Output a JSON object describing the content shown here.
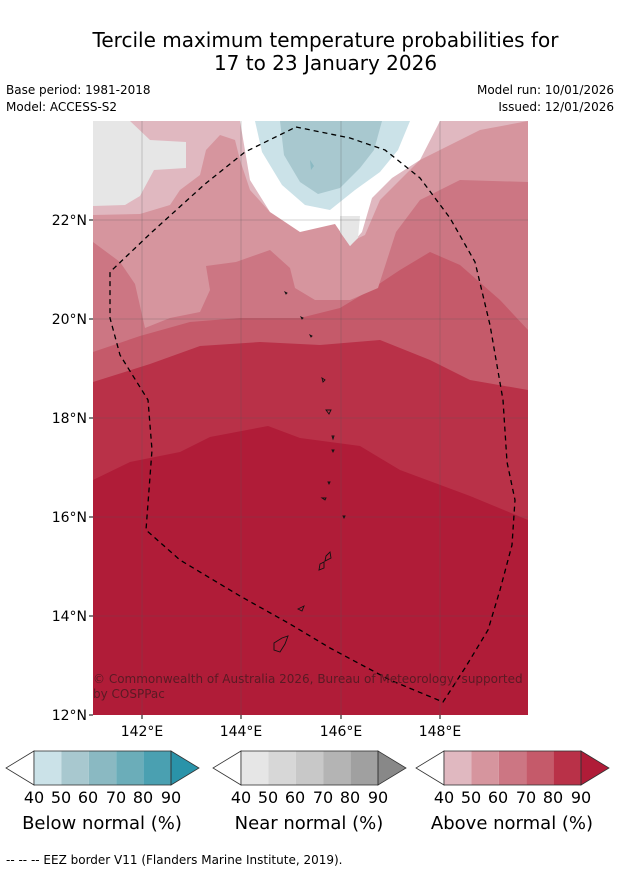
{
  "title_line1": "Tercile maximum temperature probabilities for",
  "title_line2": "17 to 23 January 2026",
  "base_period": "Base period: 1981-2018",
  "model": "Model: ACCESS-S2",
  "model_run": "Model run: 10/01/2026",
  "issued": "Issued: 12/01/2026",
  "lat_labels": [
    "22°N",
    "20°N",
    "18°N",
    "16°N",
    "14°N",
    "12°N"
  ],
  "lon_labels": [
    "142°E",
    "144°E",
    "146°E",
    "148°E"
  ],
  "copyright": "© Commonwealth of Australia 2026, Bureau of Meteorology, supported by COSPPac",
  "colorbars": [
    {
      "label": "Below normal (%)",
      "ticks": [
        "40",
        "50",
        "60",
        "70",
        "80",
        "90"
      ],
      "colors": [
        "#cbe2e8",
        "#a8c8cf",
        "#8ab9c2",
        "#6badb9",
        "#4aa0b1",
        "#2a93a9"
      ]
    },
    {
      "label": "Near normal (%)",
      "ticks": [
        "40",
        "50",
        "60",
        "70",
        "80",
        "90"
      ],
      "colors": [
        "#e6e6e6",
        "#d7d7d7",
        "#c8c8c8",
        "#b4b4b4",
        "#a0a0a0",
        "#888888"
      ]
    },
    {
      "label": "Above normal (%)",
      "ticks": [
        "40",
        "50",
        "60",
        "70",
        "80",
        "90"
      ],
      "colors": [
        "#e0b8c0",
        "#d6959e",
        "#cc7683",
        "#c55a6a",
        "#b93148",
        "#b01c38"
      ]
    }
  ],
  "footer": "--  --  -- EEZ border V11 (Flanders Marine Institute, 2019)."
}
